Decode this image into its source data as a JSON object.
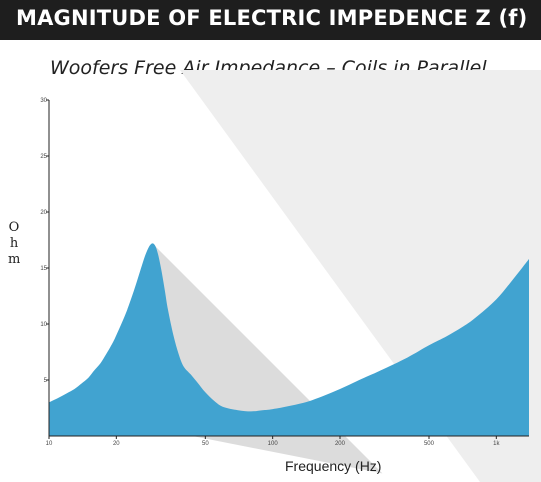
{
  "header": {
    "title": "MAGNITUDE OF ELECTRIC IMPEDENCE Z (f)"
  },
  "chart_data": {
    "type": "area",
    "title": "Woofers Free Air Impedance – Coils in Parallel",
    "xlabel": "Frequency (Hz)",
    "ylabel": "Ohm",
    "x_scale": "log",
    "xlim": [
      10,
      1400
    ],
    "ylim": [
      0,
      30
    ],
    "x_ticks": [
      10,
      20,
      50,
      100,
      200,
      500,
      1000
    ],
    "x_tick_labels": [
      "10",
      "20",
      "50",
      "100",
      "200",
      "500",
      "1k"
    ],
    "y_ticks": [
      5,
      10,
      15,
      20,
      25,
      30
    ],
    "y_tick_labels": [
      "5",
      "10",
      "15",
      "20",
      "25",
      "30"
    ],
    "grid": false,
    "colors": {
      "fill": "#41a3d0",
      "shadow": "#dcdcdc",
      "header": "#1e1e1e"
    },
    "series": [
      {
        "x": [
          10,
          11,
          12,
          13,
          14,
          15,
          16,
          17,
          18,
          19,
          20,
          22,
          24,
          26,
          27,
          28,
          29,
          30,
          31,
          32,
          33,
          34,
          36,
          38,
          40,
          43,
          46,
          50,
          55,
          60,
          70,
          80,
          90,
          100,
          120,
          150,
          200,
          250,
          300,
          400,
          500,
          600,
          700,
          800,
          1000,
          1200,
          1400
        ],
        "y": [
          3.0,
          3.4,
          3.8,
          4.2,
          4.7,
          5.2,
          5.9,
          6.5,
          7.3,
          8.1,
          9.0,
          10.9,
          13.0,
          15.2,
          16.2,
          16.9,
          17.2,
          16.9,
          15.9,
          14.5,
          12.9,
          11.3,
          9.0,
          7.3,
          6.2,
          5.5,
          4.8,
          3.9,
          3.1,
          2.6,
          2.3,
          2.2,
          2.3,
          2.4,
          2.7,
          3.2,
          4.2,
          5.1,
          5.8,
          7.0,
          8.1,
          8.9,
          9.7,
          10.5,
          12.2,
          14.1,
          15.8
        ]
      }
    ]
  }
}
